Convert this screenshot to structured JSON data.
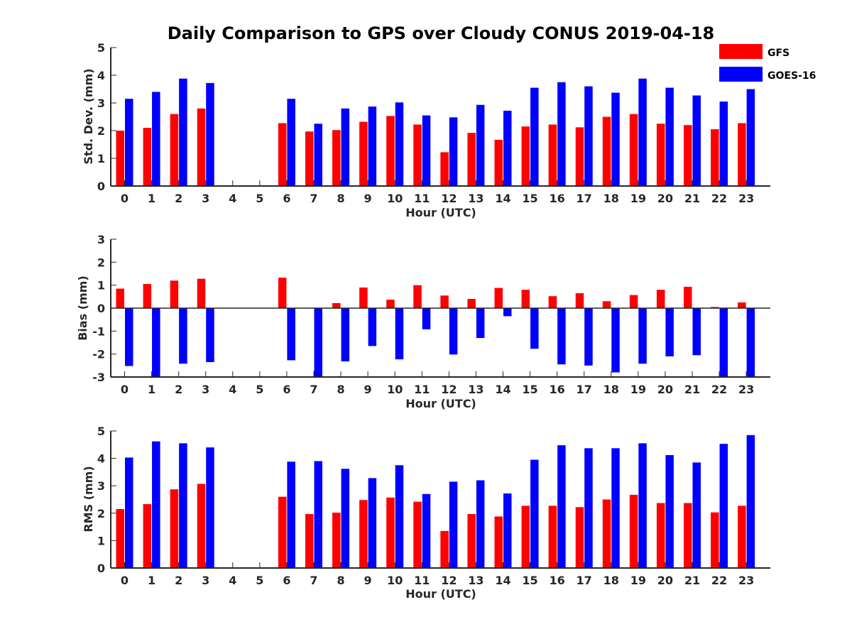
{
  "chart_data": {
    "title": "Daily Comparison to GPS over Cloudy CONUS 2019-04-18",
    "legend": {
      "position": "top-right",
      "entries": [
        {
          "name": "GFS",
          "color": "#ff0000"
        },
        {
          "name": "GOES-16",
          "color": "#0000ff"
        }
      ]
    },
    "panels": [
      {
        "type": "bar",
        "ylabel": "Std. Dev. (mm)",
        "xlabel": "Hour (UTC)",
        "ylim": [
          0,
          5
        ],
        "yticks": [
          0,
          1,
          2,
          3,
          4,
          5
        ],
        "categories": [
          "0",
          "1",
          "2",
          "3",
          "4",
          "5",
          "6",
          "7",
          "8",
          "9",
          "10",
          "11",
          "12",
          "13",
          "14",
          "15",
          "16",
          "17",
          "18",
          "19",
          "20",
          "21",
          "22",
          "23"
        ],
        "series": [
          {
            "name": "GFS",
            "color": "#ff0000",
            "values": [
              2.0,
              2.1,
              2.6,
              2.8,
              null,
              null,
              2.27,
              1.97,
              2.02,
              2.32,
              2.53,
              2.22,
              1.22,
              1.92,
              1.67,
              2.15,
              2.22,
              2.12,
              2.5,
              2.6,
              2.25,
              2.2,
              2.05,
              2.27
            ]
          },
          {
            "name": "GOES-16",
            "color": "#0000ff",
            "values": [
              3.15,
              3.4,
              3.88,
              3.72,
              null,
              null,
              3.15,
              2.25,
              2.8,
              2.87,
              3.02,
              2.55,
              2.48,
              2.93,
              2.72,
              3.55,
              3.75,
              3.6,
              3.37,
              3.88,
              3.55,
              3.27,
              3.05,
              3.5
            ]
          }
        ]
      },
      {
        "type": "bar",
        "ylabel": "Bias (mm)",
        "xlabel": "Hour (UTC)",
        "ylim": [
          -3,
          3
        ],
        "yticks": [
          -3,
          -2,
          -1,
          0,
          1,
          2,
          3
        ],
        "zero_line": true,
        "categories": [
          "0",
          "1",
          "2",
          "3",
          "4",
          "5",
          "6",
          "7",
          "8",
          "9",
          "10",
          "11",
          "12",
          "13",
          "14",
          "15",
          "16",
          "17",
          "18",
          "19",
          "20",
          "21",
          "22",
          "23"
        ],
        "series": [
          {
            "name": "GFS",
            "color": "#ff0000",
            "values": [
              0.85,
              1.05,
              1.2,
              1.28,
              null,
              null,
              1.33,
              null,
              0.22,
              0.9,
              0.37,
              1.0,
              0.55,
              0.4,
              0.88,
              0.8,
              0.52,
              0.65,
              0.3,
              0.57,
              0.8,
              0.93,
              0.05,
              0.25
            ]
          },
          {
            "name": "GOES-16",
            "color": "#0000ff",
            "values": [
              -2.52,
              -3.0,
              -2.42,
              -2.35,
              null,
              null,
              -2.27,
              -3.0,
              -2.32,
              -1.65,
              -2.23,
              -0.92,
              -2.02,
              -1.3,
              -0.35,
              -1.77,
              -2.45,
              -2.5,
              -2.8,
              -2.42,
              -2.1,
              -2.05,
              -3.0,
              -3.0
            ]
          }
        ]
      },
      {
        "type": "bar",
        "ylabel": "RMS (mm)",
        "xlabel": "Hour (UTC)",
        "ylim": [
          0,
          5
        ],
        "yticks": [
          0,
          1,
          2,
          3,
          4,
          5
        ],
        "categories": [
          "0",
          "1",
          "2",
          "3",
          "4",
          "5",
          "6",
          "7",
          "8",
          "9",
          "10",
          "11",
          "12",
          "13",
          "14",
          "15",
          "16",
          "17",
          "18",
          "19",
          "20",
          "21",
          "22",
          "23"
        ],
        "series": [
          {
            "name": "GFS",
            "color": "#ff0000",
            "values": [
              2.15,
              2.33,
              2.87,
              3.07,
              null,
              null,
              2.6,
              1.97,
              2.02,
              2.48,
              2.57,
              2.42,
              1.35,
              1.97,
              1.88,
              2.27,
              2.27,
              2.22,
              2.5,
              2.67,
              2.37,
              2.37,
              2.03,
              2.27
            ]
          },
          {
            "name": "GOES-16",
            "color": "#0000ff",
            "values": [
              4.03,
              4.62,
              4.55,
              4.4,
              null,
              null,
              3.88,
              3.9,
              3.62,
              3.28,
              3.75,
              2.7,
              3.15,
              3.2,
              2.72,
              3.95,
              4.48,
              4.37,
              4.37,
              4.55,
              4.12,
              3.85,
              4.53,
              4.85
            ]
          }
        ]
      }
    ]
  }
}
